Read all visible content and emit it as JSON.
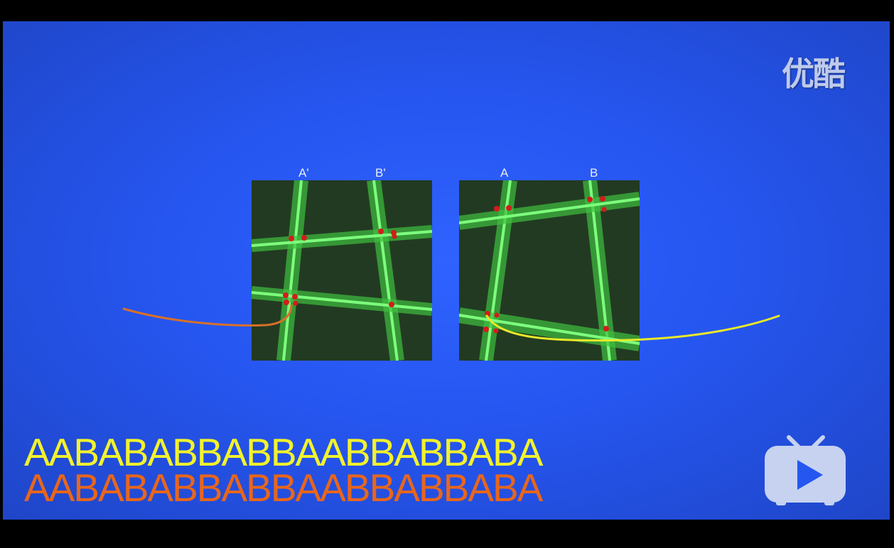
{
  "logo": {
    "text": "优酷"
  },
  "panels": {
    "left": {
      "labels": [
        "A'",
        "B'"
      ]
    },
    "right": {
      "labels": [
        "A",
        "B"
      ]
    }
  },
  "sequences": {
    "yellow": "AABABABBABBAABBABBABA",
    "orange": "AABABABBABBAABBABBABA"
  },
  "colors": {
    "background": "#2656f0",
    "filament": "#55ee55",
    "yellow_text": "#f2f22c",
    "orange_text": "#e8661c"
  },
  "icons": {
    "play": "play-tv-icon"
  }
}
